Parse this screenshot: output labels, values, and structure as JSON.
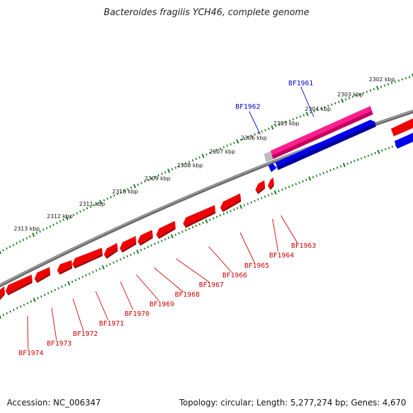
{
  "title": "Bacteroides fragilis YCH46, complete genome",
  "accession_label": "Accession: NC_006347",
  "summary_label": "Topology: circular; Length: 5,277,274 bp; Genes: 4,670",
  "colors": {
    "backbone": "#7a7a7a",
    "tick": "#1a7a1a",
    "forward_gene": "#ff1f8c",
    "forward_gene_dark": "#c4005f",
    "reverse_gene": "#ee0000",
    "reverse_gene_dark": "#a00000",
    "highlight": "#0000ee",
    "label_blue": "#0000cc",
    "label_red": "#cc0000",
    "grey_block": "#bdbdbd"
  },
  "kbp_ticks": [
    "2302 kbp",
    "2303 kbp",
    "2304 kbp",
    "2305 kbp",
    "2306 kbp",
    "2307 kbp",
    "2308 kbp",
    "2309 kbp",
    "2310 kbp",
    "2311 kbp",
    "2312 kbp",
    "2313 kbp"
  ],
  "forward_gene_labels": [
    "BF1961",
    "BF1962"
  ],
  "reverse_gene_labels": [
    "BF1963",
    "BF1964",
    "BF1965",
    "BF1966",
    "BF1967",
    "BF1968",
    "BF1969",
    "BF1970",
    "BF1971",
    "BF1972",
    "BF1973",
    "BF1974"
  ]
}
